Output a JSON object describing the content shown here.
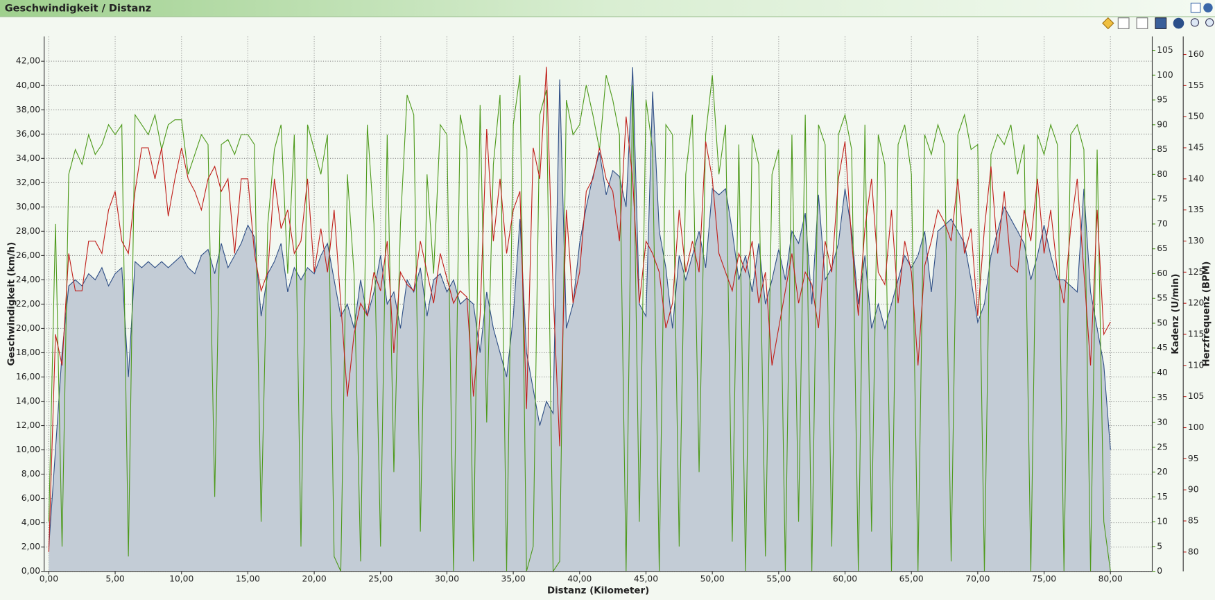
{
  "chart_data": {
    "type": "line",
    "title": "Geschwindigkeit / Distanz",
    "x_label": "Distanz (Kilometer)",
    "x": [
      0,
      0.5,
      1,
      1.5,
      2,
      2.5,
      3,
      3.5,
      4,
      4.5,
      5,
      5.5,
      6,
      6.5,
      7,
      7.5,
      8,
      8.5,
      9,
      9.5,
      10,
      10.5,
      11,
      11.5,
      12,
      12.5,
      13,
      13.5,
      14,
      14.5,
      15,
      15.5,
      16,
      16.5,
      17,
      17.5,
      18,
      18.5,
      19,
      19.5,
      20,
      20.5,
      21,
      21.5,
      22,
      22.5,
      23,
      23.5,
      24,
      24.5,
      25,
      25.5,
      26,
      26.5,
      27,
      27.5,
      28,
      28.5,
      29,
      29.5,
      30,
      30.5,
      31,
      31.5,
      32,
      32.5,
      33,
      33.5,
      34,
      34.5,
      35,
      35.5,
      36,
      36.5,
      37,
      37.5,
      38,
      38.5,
      39,
      39.5,
      40,
      40.5,
      41,
      41.5,
      42,
      42.5,
      43,
      43.5,
      44,
      44.5,
      45,
      45.5,
      46,
      46.5,
      47,
      47.5,
      48,
      48.5,
      49,
      49.5,
      50,
      50.5,
      51,
      51.5,
      52,
      52.5,
      53,
      53.5,
      54,
      54.5,
      55,
      55.5,
      56,
      56.5,
      57,
      57.5,
      58,
      58.5,
      59,
      59.5,
      60,
      60.5,
      61,
      61.5,
      62,
      62.5,
      63,
      63.5,
      64,
      64.5,
      65,
      65.5,
      66,
      66.5,
      67,
      67.5,
      68,
      68.5,
      69,
      69.5,
      70,
      70.5,
      71,
      71.5,
      72,
      72.5,
      73,
      73.5,
      74,
      74.5,
      75,
      75.5,
      76,
      76.5,
      77,
      77.5,
      78,
      78.5,
      79,
      79.5,
      80
    ],
    "xlim": [
      -0.35,
      83.15
    ],
    "xticks": [
      {
        "value": 0,
        "label": "0,00"
      },
      {
        "value": 5,
        "label": "5,00"
      },
      {
        "value": 10,
        "label": "10,00"
      },
      {
        "value": 15,
        "label": "15,00"
      },
      {
        "value": 20,
        "label": "20,00"
      },
      {
        "value": 25,
        "label": "25,00"
      },
      {
        "value": 30,
        "label": "30,00"
      },
      {
        "value": 35,
        "label": "35,00"
      },
      {
        "value": 40,
        "label": "40,00"
      },
      {
        "value": 45,
        "label": "45,00"
      },
      {
        "value": 50,
        "label": "50,00"
      },
      {
        "value": 55,
        "label": "55,00"
      },
      {
        "value": 60,
        "label": "60,00"
      },
      {
        "value": 65,
        "label": "65,00"
      },
      {
        "value": 70,
        "label": "70,00"
      },
      {
        "value": 75,
        "label": "75,00"
      },
      {
        "value": 80,
        "label": "80,00"
      }
    ],
    "ylim": [
      0,
      44.04
    ],
    "yticks": [
      {
        "value": 0,
        "label": "0,00"
      },
      {
        "value": 2,
        "label": "2,00"
      },
      {
        "value": 4,
        "label": "4,00"
      },
      {
        "value": 6,
        "label": "6,00"
      },
      {
        "value": 8,
        "label": "8,00"
      },
      {
        "value": 10,
        "label": "10,00"
      },
      {
        "value": 12,
        "label": "12,00"
      },
      {
        "value": 14,
        "label": "14,00"
      },
      {
        "value": 16,
        "label": "16,00"
      },
      {
        "value": 18,
        "label": "18,00"
      },
      {
        "value": 20,
        "label": "20,00"
      },
      {
        "value": 22,
        "label": "22,00"
      },
      {
        "value": 24,
        "label": "24,00"
      },
      {
        "value": 26,
        "label": "26,00"
      },
      {
        "value": 28,
        "label": "28,00"
      },
      {
        "value": 30,
        "label": "30,00"
      },
      {
        "value": 32,
        "label": "32,00"
      },
      {
        "value": 34,
        "label": "34,00"
      },
      {
        "value": 36,
        "label": "36,00"
      },
      {
        "value": 38,
        "label": "38,00"
      },
      {
        "value": 40,
        "label": "40,00"
      },
      {
        "value": 42,
        "label": "42,00"
      }
    ],
    "y2lim": [
      0,
      107.8
    ],
    "y2ticks": [
      0,
      5,
      10,
      15,
      20,
      25,
      30,
      35,
      40,
      45,
      50,
      55,
      60,
      65,
      70,
      75,
      80,
      85,
      90,
      95,
      100,
      105
    ],
    "y3lim": [
      76.9,
      162.9
    ],
    "y3ticks": [
      80,
      85,
      90,
      95,
      100,
      105,
      110,
      115,
      120,
      125,
      130,
      135,
      140,
      145,
      150,
      155,
      160
    ],
    "grid": true,
    "series": [
      {
        "name": "Geschwindigkeit (km/h)",
        "color": "#2f4f86",
        "fill": "#c3ccd6",
        "axis": "y",
        "values": [
          2,
          10,
          18,
          23.5,
          24,
          23.5,
          24.5,
          24,
          25,
          23.5,
          24.5,
          25,
          16,
          25.5,
          25,
          25.5,
          25,
          25.5,
          25,
          25.5,
          26,
          25,
          24.5,
          26,
          26.5,
          24.5,
          27,
          25,
          26,
          27,
          28.5,
          27.5,
          21,
          24.5,
          25.5,
          27,
          23,
          25,
          24,
          25,
          24.5,
          26,
          27,
          24,
          21,
          22,
          20,
          24,
          21,
          23,
          26,
          22,
          23,
          20,
          24,
          23,
          25,
          21,
          24,
          24.5,
          23,
          24,
          22,
          22.5,
          22,
          18,
          23,
          20,
          18,
          16,
          21,
          29,
          18,
          15,
          12,
          14,
          13,
          40.5,
          20,
          22,
          27,
          30,
          32.5,
          34.5,
          31,
          33,
          32.5,
          30,
          41.5,
          22,
          21,
          39.5,
          28,
          25,
          20,
          26,
          24,
          26,
          28,
          25,
          31.5,
          31,
          31.5,
          28,
          24,
          26,
          23,
          27,
          22,
          24,
          26.5,
          24,
          28,
          27,
          29.5,
          22,
          31,
          24,
          25,
          27,
          31.5,
          28,
          22,
          26,
          20,
          22,
          20,
          22,
          24,
          26,
          25,
          26,
          28,
          23,
          28,
          28.5,
          29,
          28,
          27,
          24,
          20.5,
          22,
          26,
          28,
          30,
          29,
          28,
          27,
          24,
          26,
          28.5,
          26,
          24,
          24,
          23.5,
          23,
          31.5,
          23,
          20,
          17,
          10
        ]
      },
      {
        "name": "Kadenz (U/min)",
        "color": "#4e9a1c",
        "axis": "y2",
        "values": [
          10,
          70,
          5,
          80,
          85,
          82,
          88,
          84,
          86,
          90,
          88,
          90,
          3,
          92,
          90,
          88,
          92,
          85,
          90,
          91,
          91,
          80,
          84,
          88,
          86,
          15,
          86,
          87,
          84,
          88,
          88,
          86,
          10,
          70,
          85,
          90,
          60,
          88,
          5,
          90,
          85,
          80,
          88,
          3,
          0,
          80,
          60,
          2,
          90,
          70,
          5,
          88,
          20,
          70,
          96,
          92,
          8,
          80,
          60,
          90,
          88,
          0,
          92,
          85,
          2,
          94,
          30,
          82,
          96,
          0,
          90,
          100,
          0,
          5,
          92,
          97,
          0,
          2,
          95,
          88,
          90,
          98,
          92,
          85,
          100,
          95,
          88,
          0,
          98,
          10,
          95,
          85,
          0,
          90,
          88,
          5,
          80,
          92,
          20,
          88,
          100,
          80,
          90,
          6,
          86,
          0,
          88,
          82,
          3,
          80,
          85,
          0,
          88,
          10,
          92,
          0,
          90,
          86,
          5,
          88,
          92,
          85,
          0,
          90,
          8,
          88,
          82,
          0,
          86,
          90,
          80,
          0,
          88,
          84,
          90,
          86,
          2,
          88,
          92,
          85,
          86,
          0,
          84,
          88,
          86,
          90,
          80,
          86,
          0,
          88,
          84,
          90,
          86,
          0,
          88,
          90,
          85,
          0,
          85,
          10,
          0
        ]
      },
      {
        "name": "Herzfrequenz (BPM)",
        "color": "#c01f1a",
        "axis": "y3",
        "values": [
          80,
          115,
          110,
          128,
          122,
          122,
          130,
          130,
          128,
          135,
          138,
          130,
          128,
          138,
          145,
          145,
          140,
          145,
          134,
          140,
          145,
          140,
          138,
          135,
          140,
          142,
          138,
          140,
          128,
          140,
          140,
          128,
          122,
          125,
          140,
          132,
          135,
          128,
          130,
          140,
          125,
          132,
          125,
          135,
          120,
          105,
          115,
          120,
          118,
          125,
          122,
          130,
          112,
          125,
          123,
          122,
          130,
          125,
          120,
          128,
          124,
          120,
          122,
          121,
          105,
          118,
          148,
          130,
          140,
          128,
          135,
          138,
          103,
          145,
          140,
          158,
          122,
          97,
          135,
          120,
          125,
          138,
          140,
          145,
          140,
          138,
          130,
          150,
          140,
          120,
          130,
          128,
          125,
          116,
          120,
          135,
          125,
          130,
          125,
          146,
          140,
          128,
          125,
          122,
          128,
          125,
          130,
          120,
          125,
          110,
          116,
          122,
          128,
          120,
          125,
          123,
          116,
          130,
          125,
          140,
          146,
          130,
          118,
          132,
          140,
          125,
          123,
          135,
          120,
          130,
          125,
          110,
          126,
          130,
          135,
          133,
          130,
          140,
          128,
          132,
          118,
          132,
          142,
          128,
          138,
          126,
          125,
          135,
          130,
          140,
          128,
          135,
          125,
          120,
          132,
          140,
          125,
          110,
          135,
          115,
          117
        ]
      }
    ]
  }
}
